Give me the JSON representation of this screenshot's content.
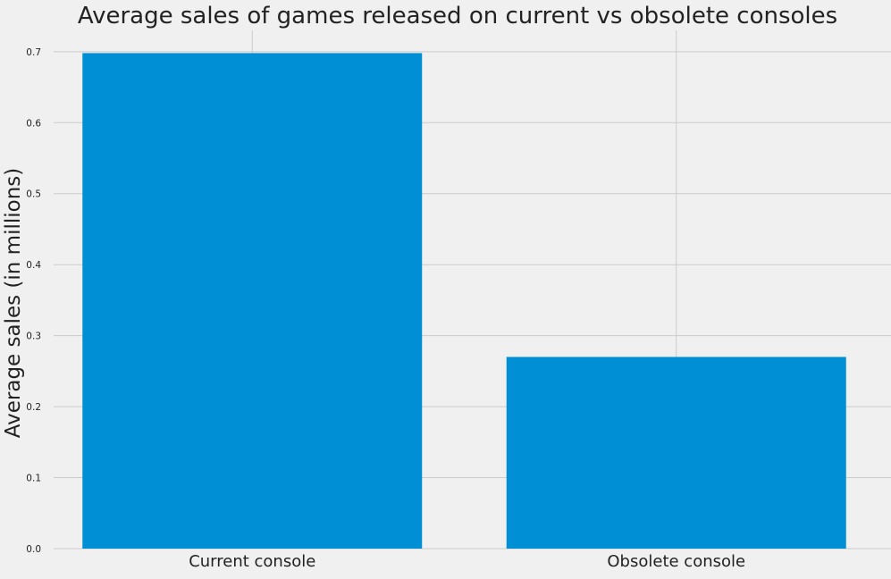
{
  "chart_data": {
    "type": "bar",
    "title": "Average sales of games released on current vs obsolete consoles",
    "xlabel": "",
    "ylabel": "Average sales (in millions)",
    "categories": [
      "Current console",
      "Obsolete console"
    ],
    "values": [
      0.698,
      0.27
    ],
    "ylim": [
      0,
      0.73
    ],
    "yticks": [
      "0.0",
      "0.1",
      "0.2",
      "0.3",
      "0.4",
      "0.5",
      "0.6",
      "0.7"
    ],
    "grid": true,
    "bar_color": "#008fd5",
    "background_color": "#f0f0f0",
    "grid_color": "#cbcbcb"
  }
}
